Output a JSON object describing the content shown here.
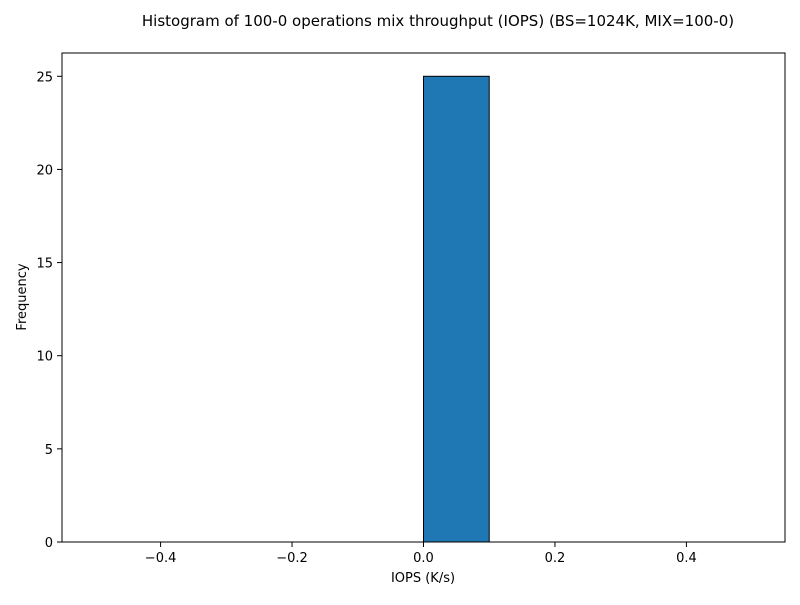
{
  "chart_data": {
    "type": "bar",
    "title": "Histogram of 100-0 operations mix throughput (IOPS) (BS=1024K, MIX=100-0)",
    "xlabel": "IOPS (K/s)",
    "ylabel": "Frequency",
    "bins": [
      {
        "start": -0.5,
        "end": -0.4,
        "count": 0
      },
      {
        "start": -0.4,
        "end": -0.3,
        "count": 0
      },
      {
        "start": -0.3,
        "end": -0.2,
        "count": 0
      },
      {
        "start": -0.2,
        "end": -0.1,
        "count": 0
      },
      {
        "start": -0.1,
        "end": 0.0,
        "count": 0
      },
      {
        "start": 0.0,
        "end": 0.1,
        "count": 25
      },
      {
        "start": 0.1,
        "end": 0.2,
        "count": 0
      },
      {
        "start": 0.2,
        "end": 0.3,
        "count": 0
      },
      {
        "start": 0.3,
        "end": 0.4,
        "count": 0
      },
      {
        "start": 0.4,
        "end": 0.5,
        "count": 0
      }
    ],
    "xlim": [
      -0.55,
      0.55
    ],
    "ylim": [
      0,
      26.25
    ],
    "xticks": [
      -0.4,
      -0.2,
      0.0,
      0.2,
      0.4
    ],
    "xtick_labels": [
      "−0.4",
      "−0.2",
      "0.0",
      "0.2",
      "0.4"
    ],
    "yticks": [
      0,
      5,
      10,
      15,
      20,
      25
    ],
    "ytick_labels": [
      "0",
      "5",
      "10",
      "15",
      "20",
      "25"
    ],
    "grid": false,
    "legend": "none",
    "colors": {
      "bar_fill": "#1f77b4",
      "bar_edge": "#000000",
      "axes": "#000000",
      "background": "#ffffff"
    }
  }
}
